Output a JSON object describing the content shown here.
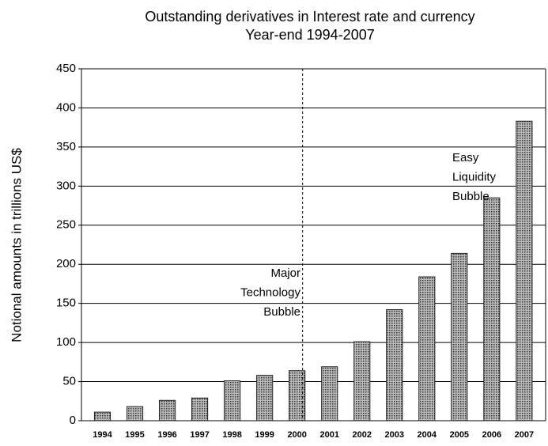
{
  "chart_data": {
    "type": "bar",
    "title": "Outstanding derivatives in Interest rate and currency",
    "subtitle": "Year-end 1994-2007",
    "y_label": "Notional amounts in trillions US$",
    "categories": [
      "1994",
      "1995",
      "1996",
      "1997",
      "1998",
      "1999",
      "2000",
      "2001",
      "2002",
      "2003",
      "2004",
      "2005",
      "2006",
      "2007"
    ],
    "values": [
      11,
      18,
      26,
      29,
      51,
      58,
      64,
      69,
      101,
      142,
      184,
      214,
      285,
      383
    ],
    "color": "#555555",
    "ylim": [
      0,
      450
    ],
    "yticks": [
      0,
      50,
      100,
      150,
      200,
      250,
      300,
      350,
      400,
      450
    ],
    "grid": true,
    "annotations": [
      {
        "lines": [
          "Major",
          "Technology",
          "Bubble"
        ]
      },
      {
        "lines": [
          "Easy",
          "Liquidity",
          "Bubble"
        ]
      }
    ]
  }
}
